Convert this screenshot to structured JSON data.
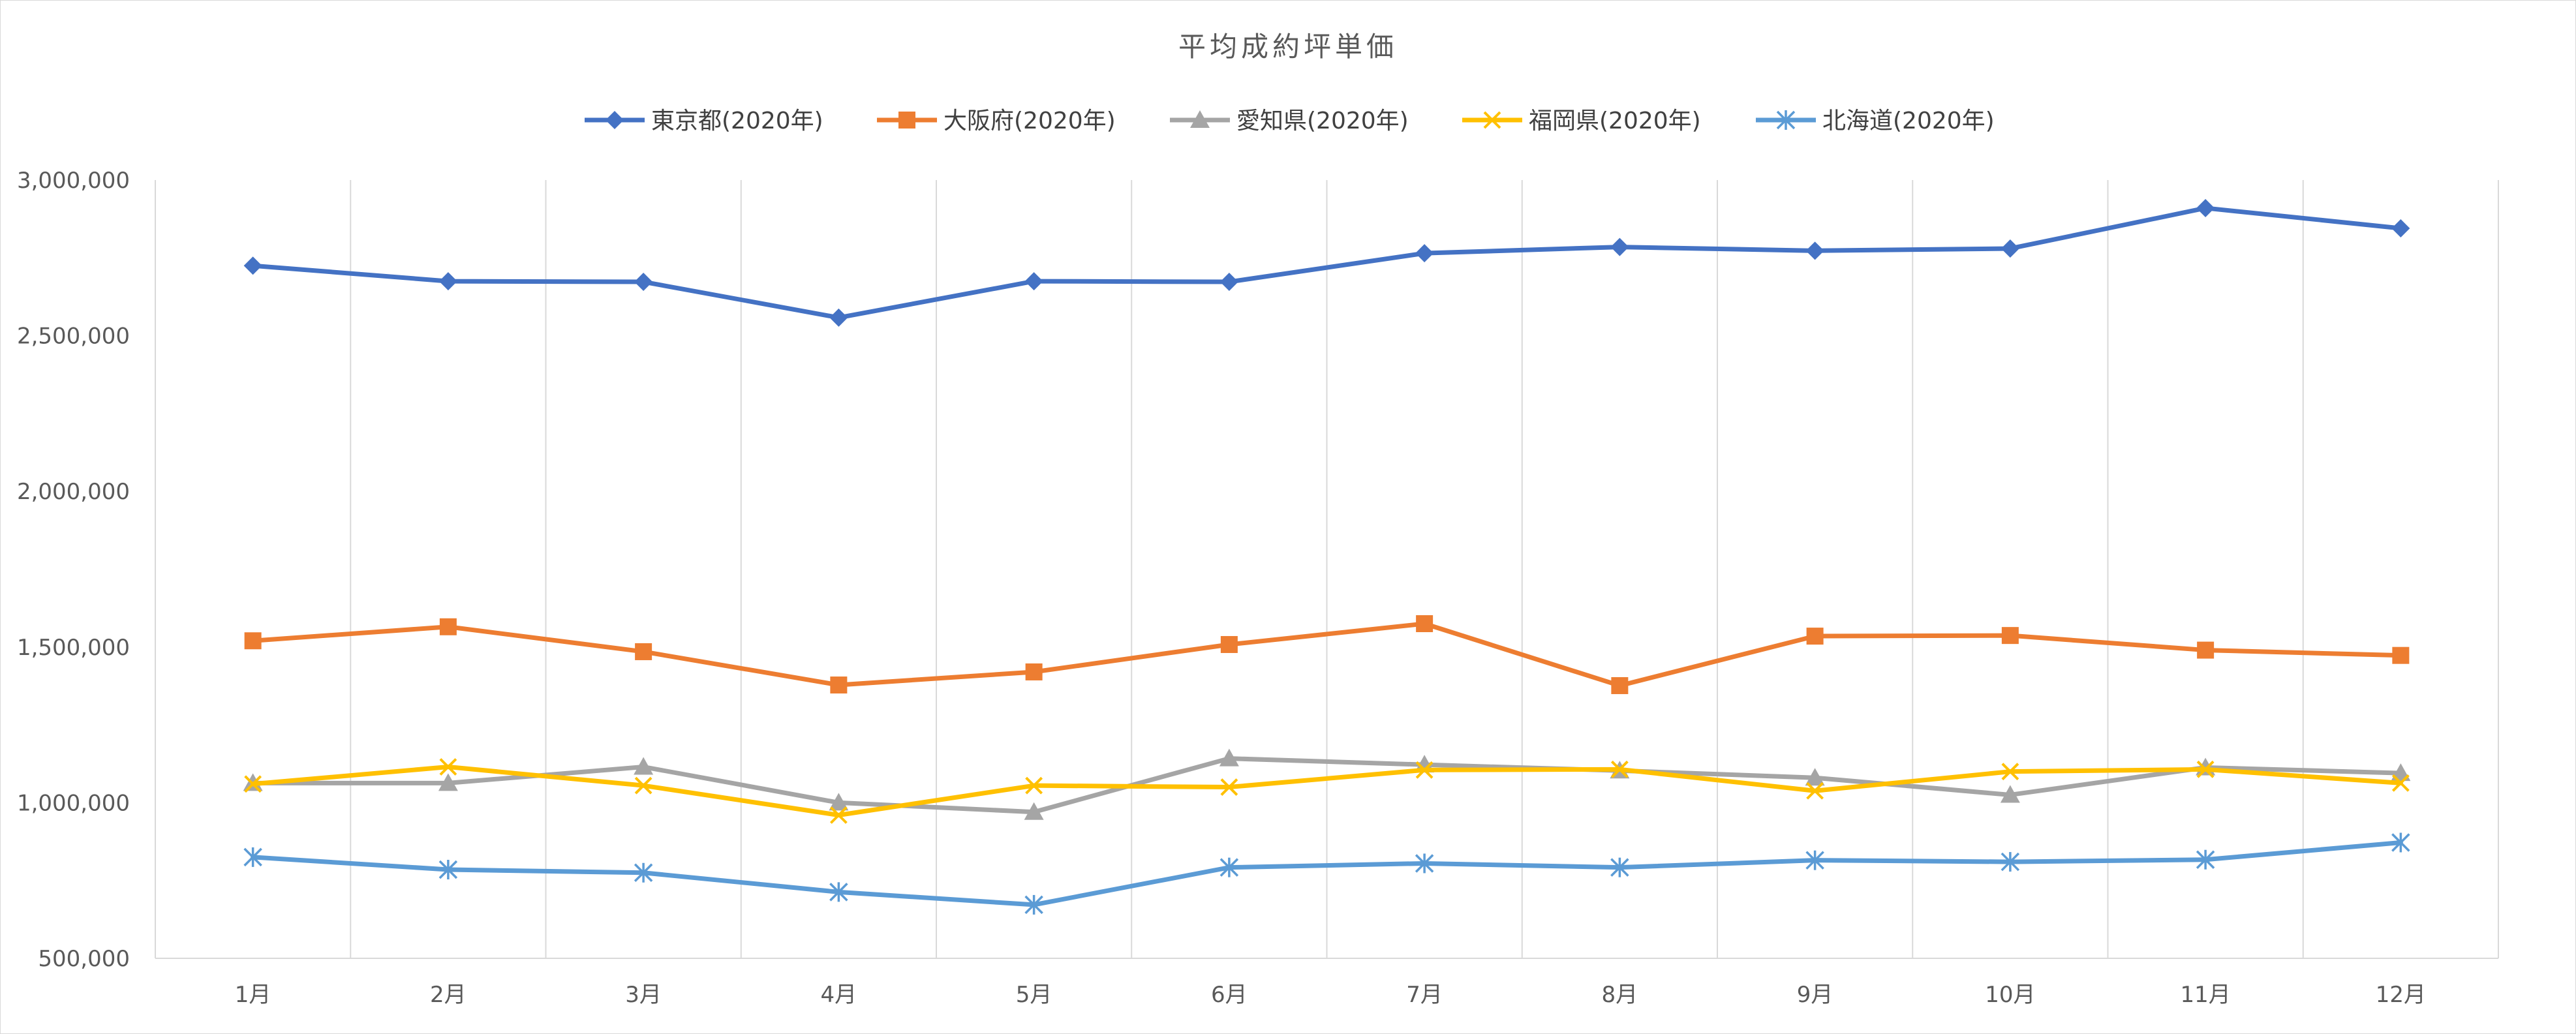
{
  "chart_data": {
    "type": "line",
    "title": "平均成約坪単価",
    "xlabel": "",
    "ylabel": "",
    "categories": [
      "1月",
      "2月",
      "3月",
      "4月",
      "5月",
      "6月",
      "7月",
      "8月",
      "9月",
      "10月",
      "11月",
      "12月"
    ],
    "ylim": [
      500000,
      3000000
    ],
    "yticks": [
      500000,
      1000000,
      1500000,
      2000000,
      2500000,
      3000000
    ],
    "ytick_labels": [
      "500,000",
      "1,000,000",
      "1,500,000",
      "2,000,000",
      "2,500,000",
      "3,000,000"
    ],
    "grid": "vertical",
    "legend_position": "top",
    "series": [
      {
        "name": "東京都(2020年)",
        "color": "#4472C4",
        "marker": "diamond",
        "values": [
          2725000,
          2675000,
          2673000,
          2558000,
          2675000,
          2673000,
          2765000,
          2785000,
          2773000,
          2780000,
          2910000,
          2845000
        ]
      },
      {
        "name": "大阪府(2020年)",
        "color": "#ED7D31",
        "marker": "square",
        "values": [
          1520000,
          1565000,
          1485000,
          1378000,
          1420000,
          1508000,
          1575000,
          1376000,
          1535000,
          1537000,
          1490000,
          1473000
        ]
      },
      {
        "name": "愛知県(2020年)",
        "color": "#A5A5A5",
        "marker": "triangle",
        "values": [
          1063000,
          1063000,
          1115000,
          1000000,
          970000,
          1142000,
          1122000,
          1103000,
          1080000,
          1025000,
          1113000,
          1095000
        ]
      },
      {
        "name": "福岡県(2020年)",
        "color": "#FFC000",
        "marker": "x",
        "values": [
          1060000,
          1115000,
          1055000,
          960000,
          1055000,
          1050000,
          1105000,
          1107000,
          1038000,
          1100000,
          1107000,
          1063000
        ]
      },
      {
        "name": "北海道(2020年)",
        "color": "#5B9BD5",
        "marker": "star",
        "values": [
          825000,
          785000,
          775000,
          713000,
          672000,
          792000,
          805000,
          792000,
          815000,
          810000,
          817000,
          872000
        ]
      }
    ]
  }
}
